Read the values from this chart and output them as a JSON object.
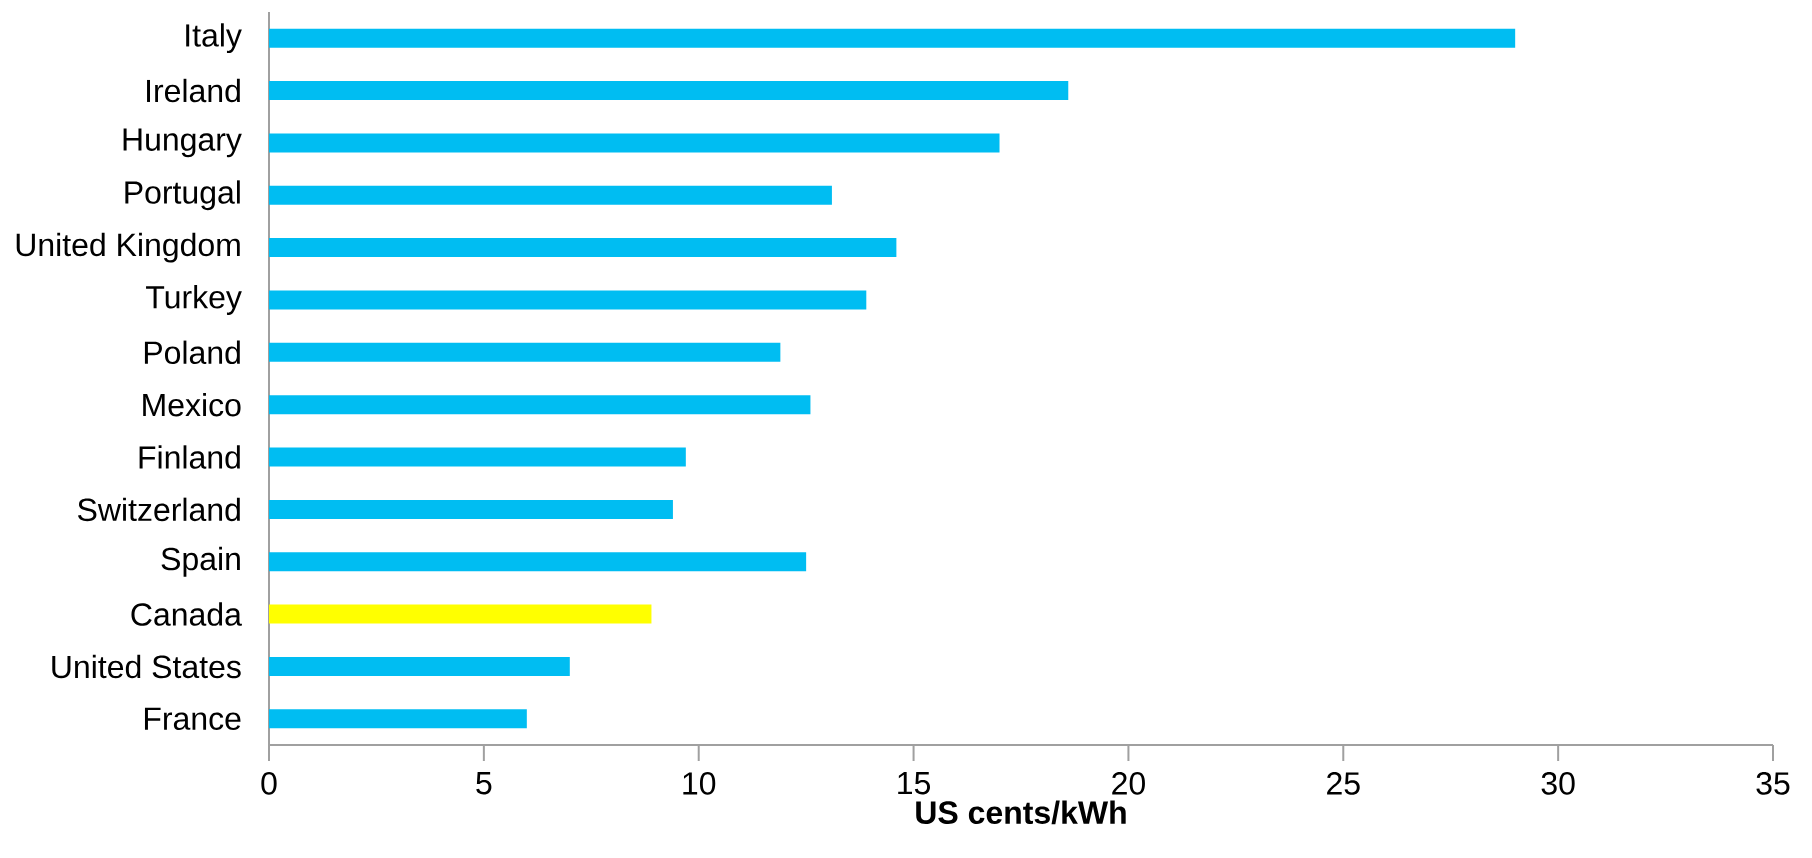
{
  "chart_data": {
    "type": "bar",
    "orientation": "horizontal",
    "xlabel": "US cents/kWh",
    "categories": [
      "Italy",
      "Ireland",
      "Hungary",
      "Portugal",
      "United Kingdom",
      "Turkey",
      "Poland",
      "Mexico",
      "Finland",
      "Switzerland",
      "Spain",
      "Canada",
      "United States",
      "France"
    ],
    "values": [
      29.0,
      18.6,
      17.0,
      13.1,
      14.6,
      13.9,
      11.9,
      12.6,
      9.7,
      9.4,
      12.5,
      8.9,
      7.0,
      6.0
    ],
    "colors": [
      "#00bdf2",
      "#00bdf2",
      "#00bdf2",
      "#00bdf2",
      "#00bdf2",
      "#00bdf2",
      "#00bdf2",
      "#00bdf2",
      "#00bdf2",
      "#00bdf2",
      "#00bdf2",
      "#ffff00",
      "#00bdf2",
      "#00bdf2"
    ],
    "xlim": [
      0,
      35
    ],
    "xticks": [
      0,
      5,
      10,
      15,
      20,
      25,
      30,
      35
    ]
  }
}
